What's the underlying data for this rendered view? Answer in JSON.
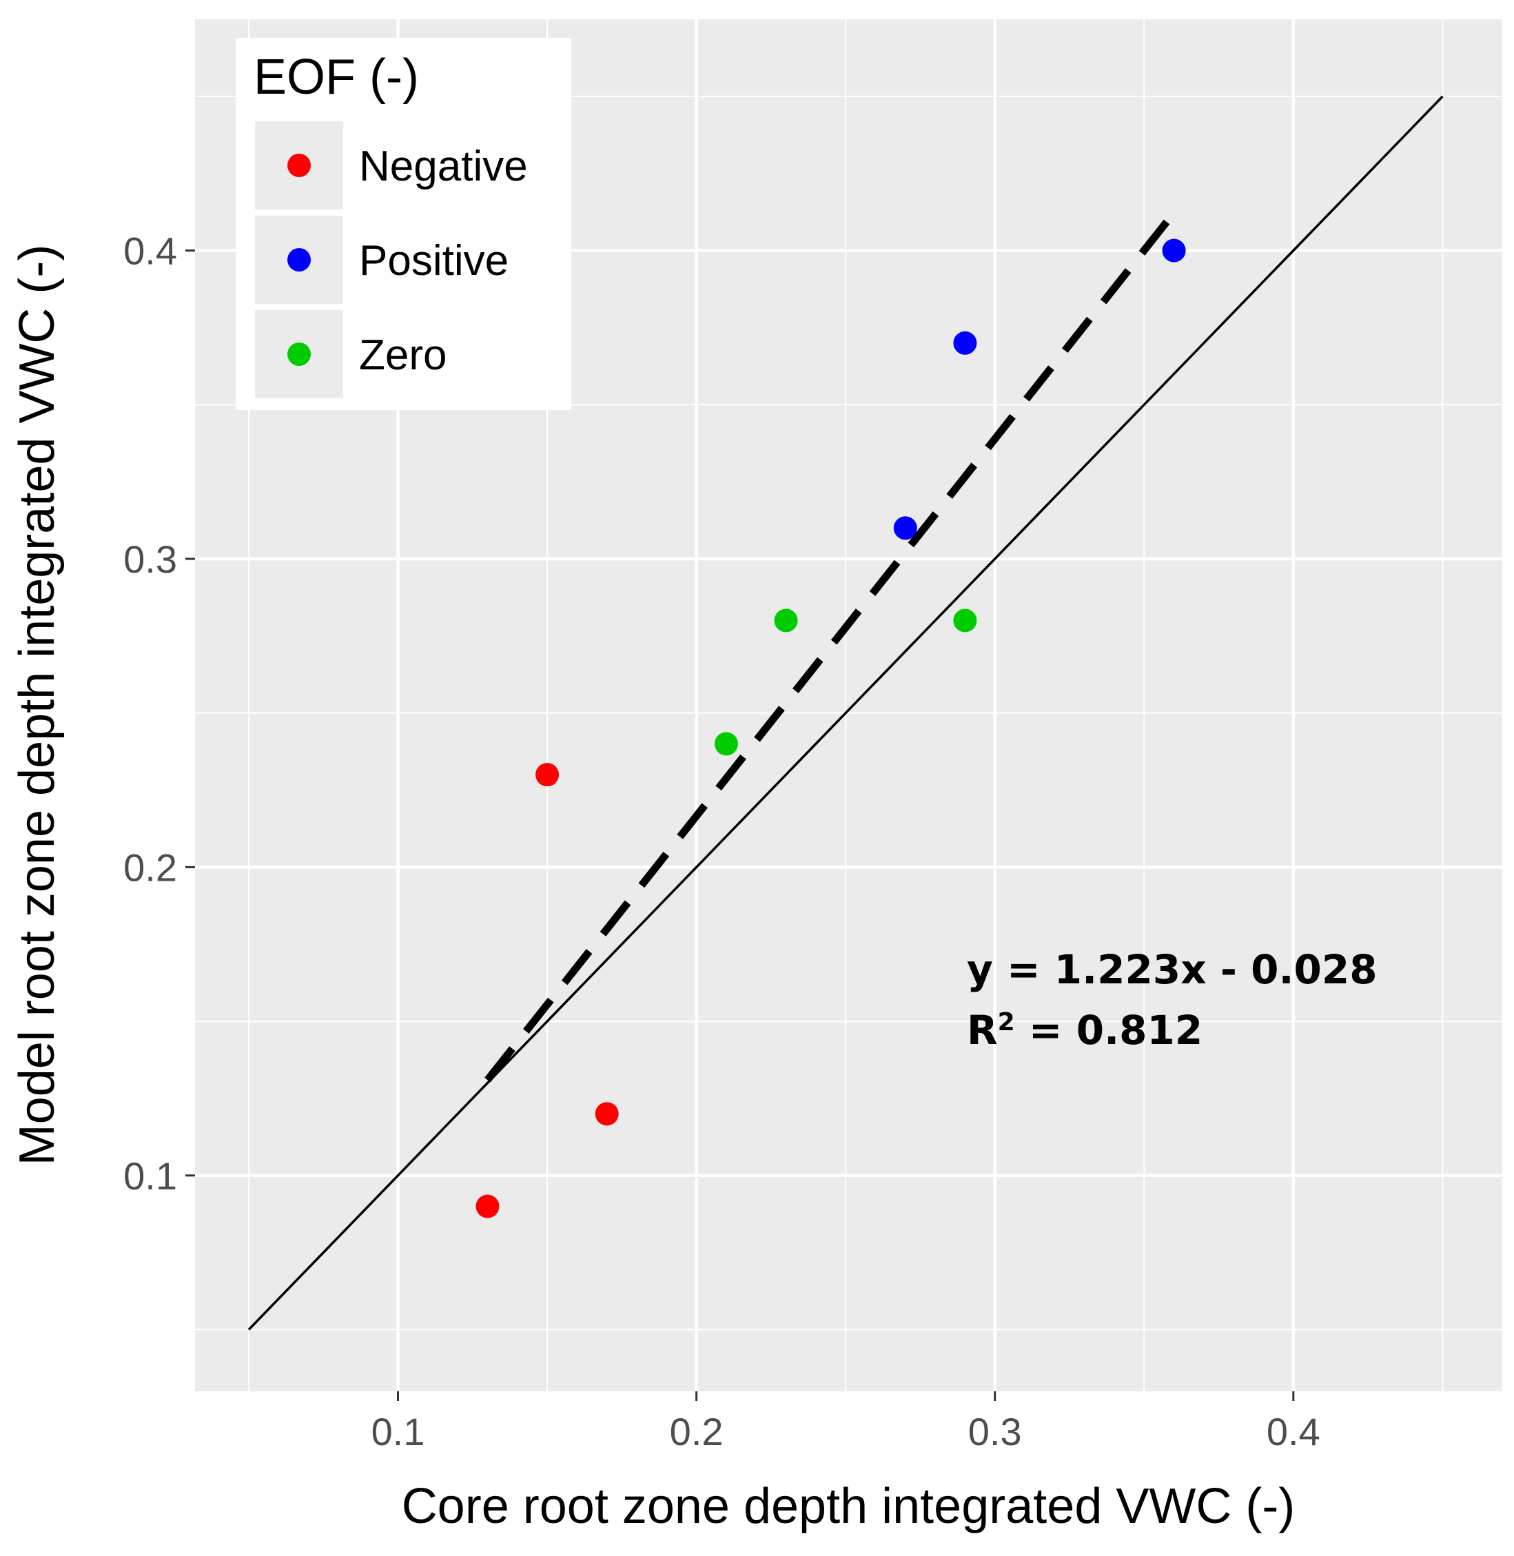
{
  "chart_data": {
    "type": "scatter",
    "title": "",
    "xlabel": "Core root zone depth integrated VWC (-)",
    "ylabel": "Model root zone depth integrated VWC (-)",
    "xlim": [
      0.032,
      0.47
    ],
    "ylim": [
      0.03,
      0.475
    ],
    "x_ticks": [
      0.1,
      0.2,
      0.3,
      0.4
    ],
    "y_ticks": [
      0.1,
      0.2,
      0.3,
      0.4
    ],
    "x_tick_labels": [
      "0.1",
      "0.2",
      "0.3",
      "0.4"
    ],
    "y_tick_labels": [
      "0.1",
      "0.2",
      "0.3",
      "0.4"
    ],
    "x_minor_gridlines": [
      0.05,
      0.15,
      0.25,
      0.35,
      0.45
    ],
    "y_minor_gridlines": [
      0.05,
      0.15,
      0.25,
      0.35,
      0.45
    ],
    "grid": true,
    "legend": {
      "title": "EOF (-)",
      "placement": "top-left"
    },
    "series": [
      {
        "name": "Negative",
        "color": "#ff0000",
        "points": [
          [
            0.13,
            0.09
          ],
          [
            0.15,
            0.23
          ],
          [
            0.17,
            0.12
          ]
        ]
      },
      {
        "name": "Positive",
        "color": "#0000ff",
        "points": [
          [
            0.27,
            0.31
          ],
          [
            0.29,
            0.37
          ],
          [
            0.36,
            0.4
          ]
        ]
      },
      {
        "name": "Zero",
        "color": "#00cc00",
        "points": [
          [
            0.21,
            0.24
          ],
          [
            0.23,
            0.28
          ],
          [
            0.29,
            0.28
          ]
        ]
      }
    ],
    "lines": [
      {
        "name": "one-to-one",
        "style": "solid",
        "color": "#000000",
        "x": [
          0.05,
          0.45
        ],
        "y": [
          0.05,
          0.45
        ]
      },
      {
        "name": "regression",
        "style": "dashed",
        "color": "#000000",
        "slope": 1.223,
        "intercept": -0.028,
        "x": [
          0.13,
          0.36
        ]
      }
    ],
    "annotations": {
      "equation": "y = 1.223x - 0.028",
      "r2_prefix": "R",
      "r2_superscript": "2",
      "r2_rest": " = 0.812",
      "anchor": [
        0.29,
        0.165
      ]
    }
  }
}
